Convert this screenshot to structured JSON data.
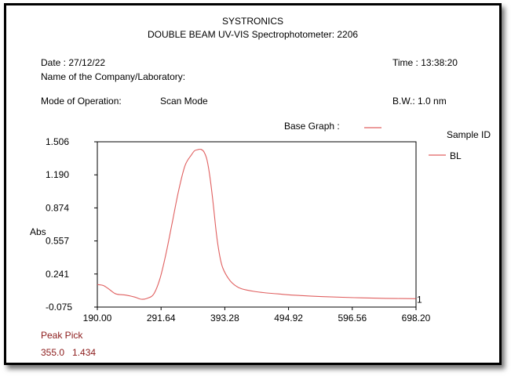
{
  "header": {
    "brand": "SYSTRONICS",
    "instrument": "DOUBLE BEAM UV-VIS Spectrophotometer: 2206"
  },
  "info": {
    "date_label": "Date : 27/12/22",
    "time_label": "Time : 13:38:20",
    "company_label": "Name of the Company/Laboratory:",
    "mode_label": "Mode of Operation:",
    "mode_value": "Scan Mode",
    "bw_label": "B.W.:  1.0 nm"
  },
  "legend": {
    "base_graph_label": "Base Graph :",
    "sample_id_label": "Sample ID",
    "series_label": "BL",
    "line_color": "#e06060"
  },
  "peak_pick": {
    "title": "Peak Pick",
    "wavelength": "355.0",
    "absorbance": "1.434"
  },
  "chart_data": {
    "type": "line",
    "ylabel": "Abs",
    "xlim": [
      190.0,
      698.2
    ],
    "ylim": [
      -0.075,
      1.506
    ],
    "x_ticks": [
      "190.00",
      "291.64",
      "393.28",
      "494.92",
      "596.56",
      "698.20"
    ],
    "y_ticks": [
      "-0.075",
      "0.241",
      "0.557",
      "0.874",
      "1.190",
      "1.506"
    ],
    "end_marker": "1",
    "series": [
      {
        "name": "BL",
        "x": [
          190,
          200,
          210,
          220,
          235,
          250,
          260,
          270,
          280,
          290,
          300,
          310,
          320,
          330,
          340,
          345,
          350,
          355,
          360,
          365,
          370,
          375,
          380,
          385,
          390,
          400,
          410,
          420,
          440,
          460,
          480,
          500,
          550,
          600,
          650,
          698
        ],
        "y": [
          0.14,
          0.13,
          0.09,
          0.05,
          0.04,
          0.02,
          0.0,
          0.01,
          0.05,
          0.2,
          0.45,
          0.75,
          1.05,
          1.28,
          1.38,
          1.42,
          1.43,
          1.434,
          1.41,
          1.33,
          1.15,
          0.9,
          0.62,
          0.42,
          0.3,
          0.19,
          0.13,
          0.1,
          0.075,
          0.06,
          0.05,
          0.04,
          0.025,
          0.015,
          0.008,
          0.005
        ]
      }
    ]
  }
}
